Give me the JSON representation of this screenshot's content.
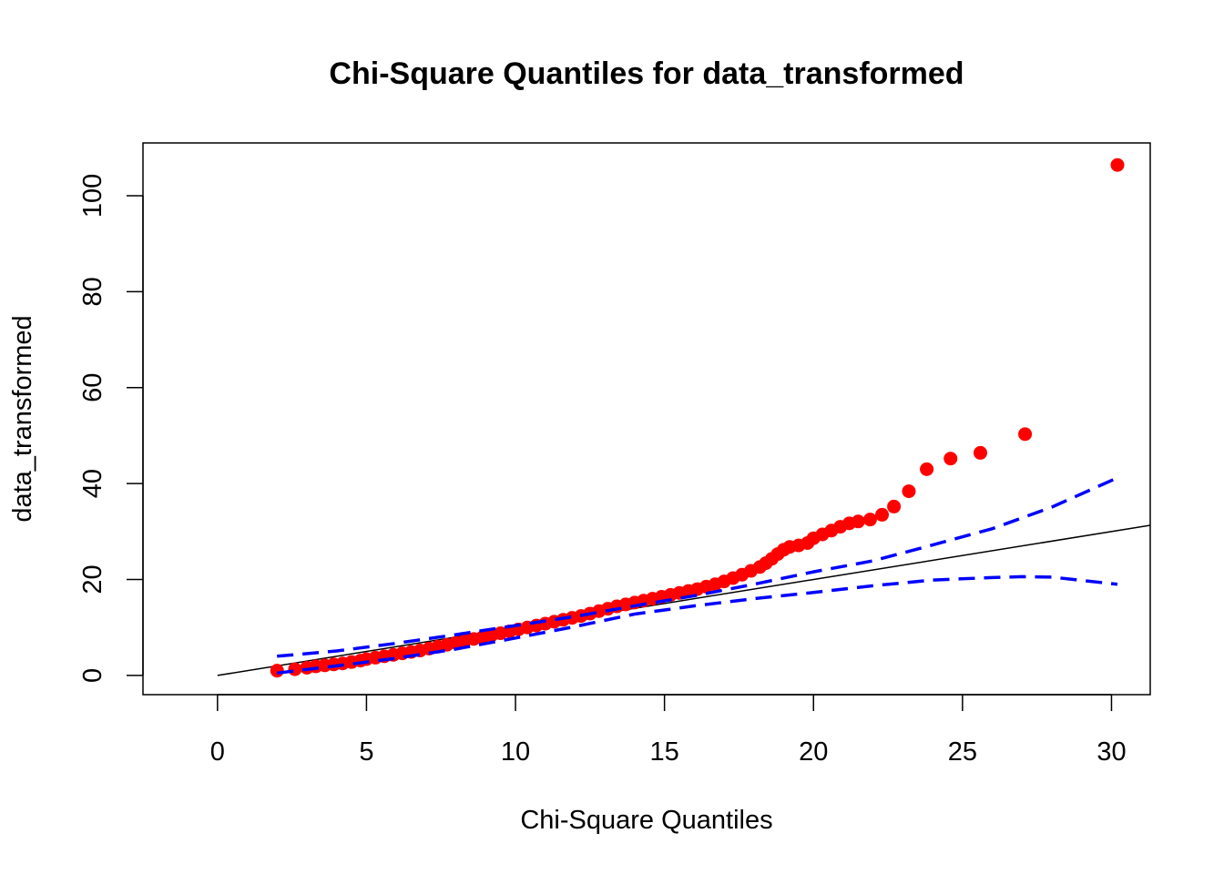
{
  "chart_data": {
    "type": "scatter",
    "title": "Chi-Square Quantiles for data_transformed",
    "xlabel": "Chi-Square Quantiles",
    "ylabel": "data_transformed",
    "xlim": [
      -2.5,
      31.3
    ],
    "ylim": [
      -4,
      111
    ],
    "x_ticks": [
      0,
      5,
      10,
      15,
      20,
      25,
      30
    ],
    "y_ticks": [
      0,
      20,
      40,
      60,
      80,
      100
    ],
    "colors": {
      "points": "#ff0000",
      "envelope": "#0000ff",
      "reference": "#000000"
    },
    "reference_line": {
      "slope": 1,
      "intercept": 0
    },
    "points": {
      "x": [
        2.0,
        2.6,
        3.0,
        3.3,
        3.6,
        3.9,
        4.2,
        4.5,
        4.8,
        5.0,
        5.3,
        5.6,
        5.9,
        6.2,
        6.5,
        6.8,
        7.1,
        7.4,
        7.7,
        8.0,
        8.3,
        8.6,
        8.9,
        9.2,
        9.5,
        9.8,
        10.1,
        10.4,
        10.7,
        11.0,
        11.3,
        11.6,
        11.9,
        12.2,
        12.5,
        12.8,
        13.1,
        13.4,
        13.7,
        14.0,
        14.3,
        14.6,
        14.9,
        15.2,
        15.5,
        15.8,
        16.1,
        16.4,
        16.7,
        17.0,
        17.3,
        17.6,
        17.9,
        18.2,
        18.4,
        18.6,
        18.8,
        19.0,
        19.2,
        19.5,
        19.8,
        20.0,
        20.3,
        20.6,
        20.9,
        21.2,
        21.5,
        21.9,
        22.3,
        22.7,
        23.2,
        23.8,
        24.6,
        25.6,
        27.1,
        30.2
      ],
      "y": [
        1.0,
        1.3,
        1.6,
        1.9,
        2.1,
        2.3,
        2.5,
        2.8,
        3.1,
        3.4,
        3.7,
        4.0,
        4.3,
        4.6,
        4.9,
        5.2,
        5.6,
        6.0,
        6.4,
        6.8,
        7.2,
        7.6,
        8.0,
        8.4,
        8.8,
        9.2,
        9.6,
        10.0,
        10.4,
        10.8,
        11.2,
        11.6,
        12.0,
        12.4,
        12.9,
        13.4,
        13.9,
        14.4,
        14.8,
        15.2,
        15.6,
        16.0,
        16.4,
        16.8,
        17.2,
        17.6,
        18.0,
        18.5,
        19.0,
        19.6,
        20.3,
        21.0,
        21.8,
        22.6,
        23.4,
        24.3,
        25.3,
        26.2,
        26.8,
        27.1,
        27.6,
        28.6,
        29.4,
        30.2,
        31.0,
        31.7,
        32.1,
        32.5,
        33.5,
        35.2,
        38.4,
        43.0,
        45.2,
        46.4,
        50.3,
        106.4
      ]
    },
    "upper_envelope": {
      "x": [
        2.0,
        4,
        6,
        8,
        10,
        12,
        14,
        16,
        18,
        20,
        22,
        24,
        26,
        28,
        30.2
      ],
      "y": [
        4.0,
        5.1,
        6.7,
        8.5,
        10.4,
        12.3,
        14.5,
        16.6,
        19.0,
        21.6,
        23.9,
        27.2,
        30.6,
        35.1,
        41.2
      ]
    },
    "lower_envelope": {
      "x": [
        2.0,
        4,
        6,
        8,
        10,
        12,
        14,
        16,
        18,
        20,
        22,
        24,
        26,
        27,
        28,
        30.2
      ],
      "y": [
        0.5,
        2.0,
        3.6,
        5.5,
        7.8,
        10.2,
        12.8,
        14.5,
        16.0,
        17.3,
        18.7,
        19.9,
        20.4,
        20.6,
        20.5,
        19.0
      ]
    }
  }
}
